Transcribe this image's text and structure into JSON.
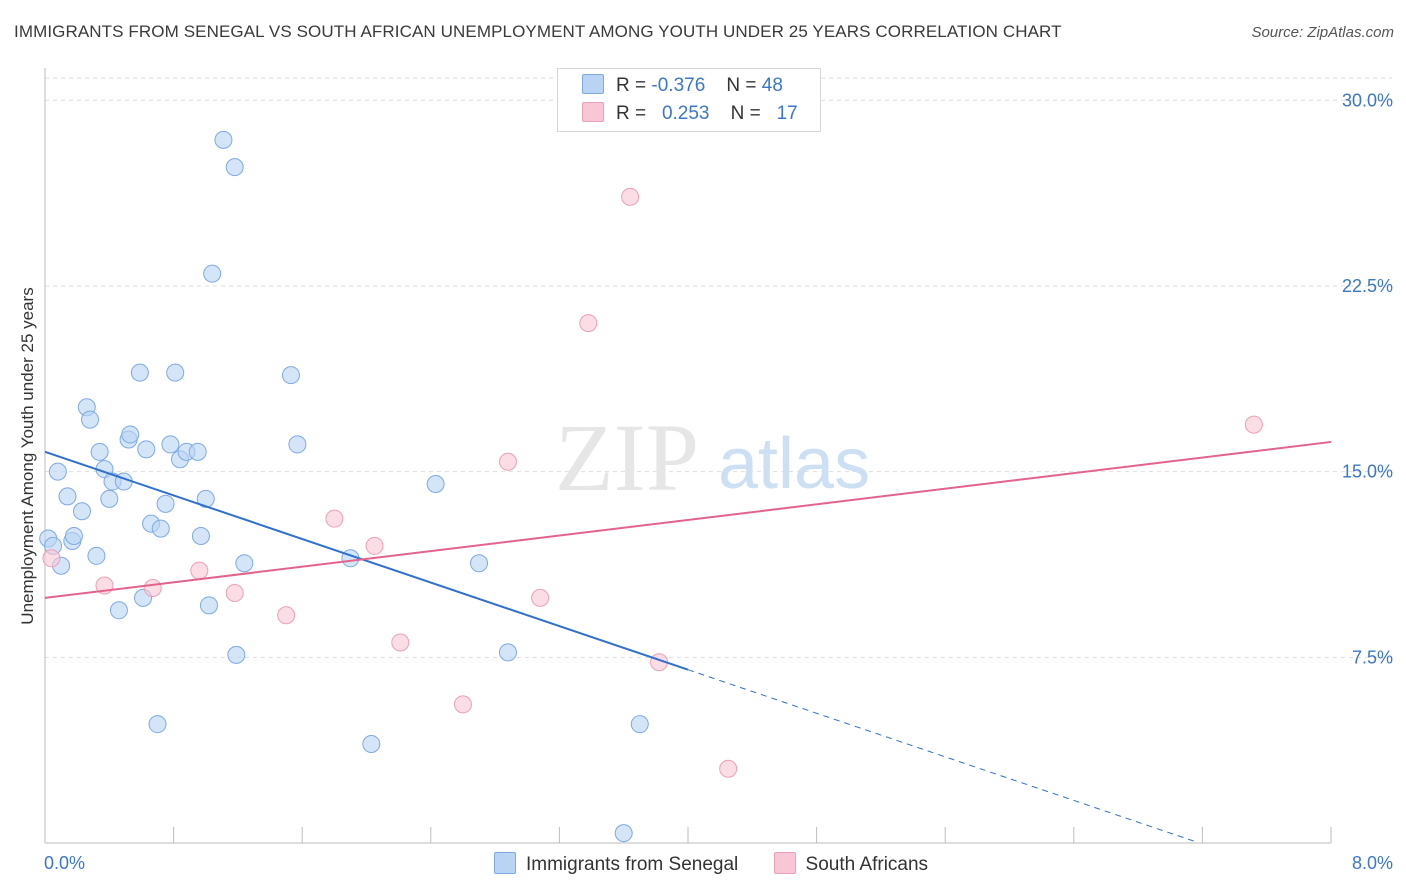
{
  "title": "IMMIGRANTS FROM SENEGAL VS SOUTH AFRICAN UNEMPLOYMENT AMONG YOUTH UNDER 25 YEARS CORRELATION CHART",
  "source": "Source: ZipAtlas.com",
  "watermark": {
    "zip": "ZIP",
    "atlas": "atlas"
  },
  "legend": {
    "rows": [
      {
        "r_label": "R =",
        "r_value": "-0.376",
        "n_label": "N =",
        "n_value": "48"
      },
      {
        "r_label": "R =",
        "r_value": "0.253",
        "n_label": "N =",
        "n_value": "17"
      }
    ]
  },
  "colors": {
    "blue_fill": "#b9d3f3",
    "blue_stroke": "#7eaae2",
    "blue_line": "#2f6fcf",
    "pink_fill": "#f8c6d4",
    "pink_stroke": "#eca0b6",
    "pink_line": "#e3638c",
    "axis_text": "#3b77c9",
    "grid": "#dedede"
  },
  "chart_data": {
    "type": "scatter",
    "title": "IMMIGRANTS FROM SENEGAL VS SOUTH AFRICAN UNEMPLOYMENT AMONG YOUTH UNDER 25 YEARS CORRELATION CHART",
    "xlabel": "",
    "ylabel": "Unemployment Among Youth under 25 years",
    "xlim": [
      0,
      8
    ],
    "ylim": [
      0,
      30.9
    ],
    "x_tick_labels": [
      "0.0%",
      "8.0%"
    ],
    "y_ticks": [
      7.5,
      15.0,
      22.5,
      30.0
    ],
    "y_tick_labels": [
      "7.5%",
      "15.0%",
      "22.5%",
      "30.0%"
    ],
    "grid": true,
    "legend_position": "bottom",
    "series": [
      {
        "name": "Immigrants from Senegal",
        "color": "#b9d3f3",
        "points": [
          [
            0.02,
            12.3
          ],
          [
            0.05,
            12.0
          ],
          [
            0.08,
            15.0
          ],
          [
            0.1,
            11.2
          ],
          [
            0.14,
            14.0
          ],
          [
            0.17,
            12.2
          ],
          [
            0.18,
            12.4
          ],
          [
            0.23,
            13.4
          ],
          [
            0.26,
            17.6
          ],
          [
            0.28,
            17.1
          ],
          [
            0.32,
            11.6
          ],
          [
            0.34,
            15.8
          ],
          [
            0.37,
            15.1
          ],
          [
            0.4,
            13.9
          ],
          [
            0.42,
            14.6
          ],
          [
            0.46,
            9.4
          ],
          [
            0.49,
            14.6
          ],
          [
            0.52,
            16.3
          ],
          [
            0.53,
            16.5
          ],
          [
            0.59,
            19.0
          ],
          [
            0.61,
            9.9
          ],
          [
            0.63,
            15.9
          ],
          [
            0.66,
            12.9
          ],
          [
            0.7,
            4.8
          ],
          [
            0.72,
            12.7
          ],
          [
            0.75,
            13.7
          ],
          [
            0.78,
            16.1
          ],
          [
            0.81,
            19.0
          ],
          [
            0.84,
            15.5
          ],
          [
            0.88,
            15.8
          ],
          [
            0.95,
            15.8
          ],
          [
            0.97,
            12.4
          ],
          [
            1.0,
            13.9
          ],
          [
            1.02,
            9.6
          ],
          [
            1.04,
            23.0
          ],
          [
            1.11,
            28.4
          ],
          [
            1.18,
            27.3
          ],
          [
            1.19,
            7.6
          ],
          [
            1.24,
            11.3
          ],
          [
            1.53,
            18.9
          ],
          [
            1.57,
            16.1
          ],
          [
            1.9,
            11.5
          ],
          [
            2.03,
            4.0
          ],
          [
            2.43,
            14.5
          ],
          [
            2.7,
            11.3
          ],
          [
            2.88,
            7.7
          ],
          [
            3.6,
            0.4
          ],
          [
            3.7,
            4.8
          ]
        ]
      },
      {
        "name": "South Africans",
        "color": "#f8c6d4",
        "points": [
          [
            0.04,
            11.5
          ],
          [
            0.37,
            10.4
          ],
          [
            0.67,
            10.3
          ],
          [
            0.96,
            11.0
          ],
          [
            1.18,
            10.1
          ],
          [
            1.5,
            9.2
          ],
          [
            1.8,
            13.1
          ],
          [
            2.05,
            12.0
          ],
          [
            2.21,
            8.1
          ],
          [
            2.6,
            5.6
          ],
          [
            2.88,
            15.4
          ],
          [
            3.08,
            9.9
          ],
          [
            3.38,
            21.0
          ],
          [
            3.64,
            26.1
          ],
          [
            3.82,
            7.3
          ],
          [
            4.25,
            3.0
          ],
          [
            7.52,
            16.9
          ]
        ]
      }
    ],
    "trendlines": [
      {
        "series": "Immigrants from Senegal",
        "x1": 0.0,
        "y1": 15.8,
        "x2": 4.0,
        "y2": 7.0,
        "extend_dashed_to_x": 7.15,
        "y_at_end": 0.07
      },
      {
        "series": "South Africans",
        "x1": 0.0,
        "y1": 9.9,
        "x2": 8.0,
        "y2": 16.2
      }
    ]
  }
}
